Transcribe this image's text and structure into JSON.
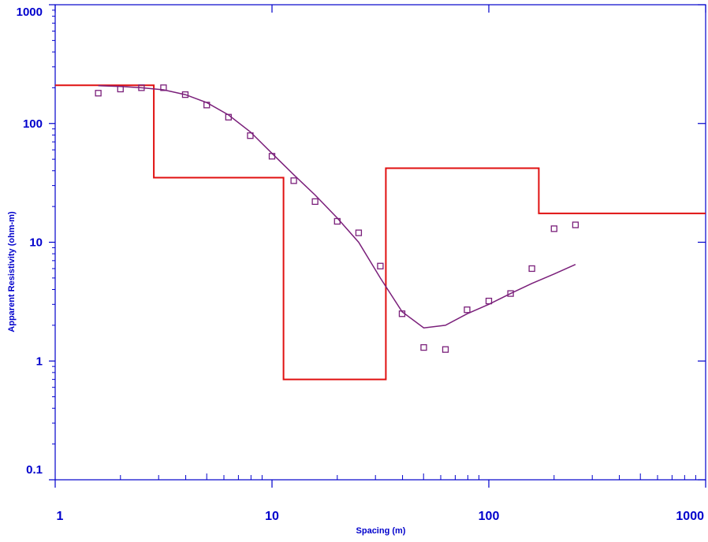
{
  "chart_data": {
    "type": "line",
    "xlabel": "Spacing (m)",
    "ylabel": "Apparent Resistivity (ohm-m)",
    "xscale": "log",
    "yscale": "log",
    "xlim": [
      1,
      1000
    ],
    "ylim": [
      0.1,
      1000
    ],
    "x_tick_labels": [
      "1",
      "10",
      "100",
      "1000"
    ],
    "y_tick_labels": [
      "0.1",
      "1",
      "10",
      "100",
      "1000"
    ],
    "grid": false,
    "legend": "none",
    "colors": {
      "axis": "#0000cc",
      "observed": "#7a1f7a",
      "calculated": "#7a1f7a",
      "model": "#e01010"
    },
    "series": [
      {
        "kind": "observed-points",
        "marker": "open-square",
        "x": [
          1.58,
          2.0,
          2.5,
          3.16,
          3.98,
          5.0,
          6.3,
          7.94,
          10.0,
          12.6,
          15.8,
          20.0,
          25.1,
          31.6,
          39.8,
          50.1,
          63.1,
          79.4,
          100.0,
          126.0,
          158.0,
          200.0,
          251.0
        ],
        "y": [
          180,
          195,
          200,
          200,
          175,
          143,
          113,
          79,
          53,
          33,
          22,
          15,
          12,
          6.3,
          2.5,
          1.3,
          1.25,
          2.7,
          3.2,
          3.7,
          6.0,
          13.0,
          14.0
        ]
      },
      {
        "kind": "calculated-curve",
        "x": [
          1.58,
          2.0,
          2.5,
          3.16,
          3.98,
          5.0,
          6.3,
          7.94,
          10.0,
          12.6,
          15.8,
          20.0,
          25.1,
          31.6,
          39.8,
          50.1,
          63.1,
          79.4,
          100.0,
          126.0,
          158.0,
          200.0,
          251.0
        ],
        "y": [
          208,
          205,
          200,
          192,
          175,
          150,
          118,
          85,
          56,
          37,
          25,
          16,
          10,
          5.0,
          2.6,
          1.9,
          2.0,
          2.5,
          3.0,
          3.7,
          4.5,
          5.4,
          6.5
        ]
      },
      {
        "kind": "layer-model",
        "layers": [
          {
            "top": 1.0,
            "bottom": 2.85,
            "resistivity": 210
          },
          {
            "top": 2.85,
            "bottom": 11.3,
            "resistivity": 35
          },
          {
            "top": 11.3,
            "bottom": 33.5,
            "resistivity": 0.7
          },
          {
            "top": 33.5,
            "bottom": 170,
            "resistivity": 42
          },
          {
            "top": 170,
            "bottom": 1000,
            "resistivity": 17.5
          }
        ]
      }
    ]
  }
}
